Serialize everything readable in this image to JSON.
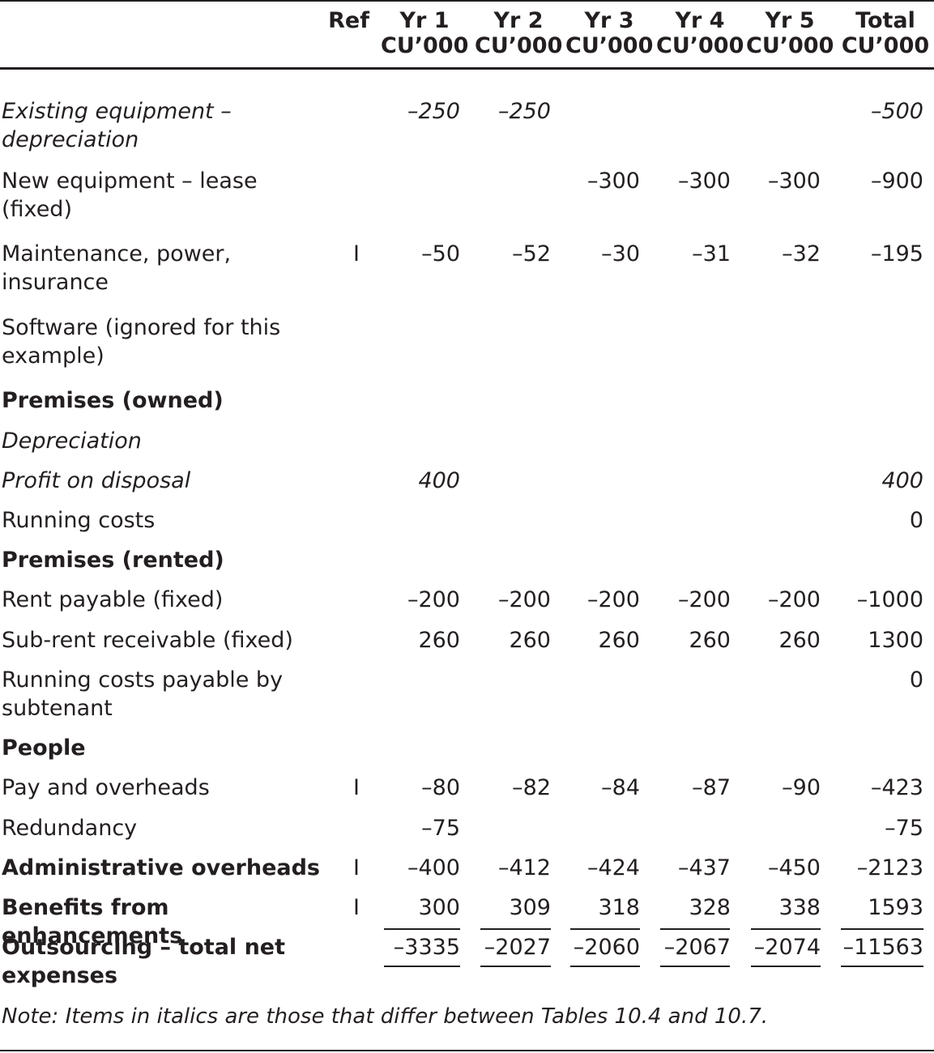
{
  "header": {
    "ref": "Ref",
    "cols": [
      {
        "title": "Yr 1",
        "unit": "CU’000"
      },
      {
        "title": "Yr 2",
        "unit": "CU’000"
      },
      {
        "title": "Yr 3",
        "unit": "CU’000"
      },
      {
        "title": "Yr 4",
        "unit": "CU’000"
      },
      {
        "title": "Yr 5",
        "unit": "CU’000"
      },
      {
        "title": "Total",
        "unit": "CU’000"
      }
    ]
  },
  "rows": [
    {
      "label": "Existing equipment – depreciation",
      "ref": "",
      "values": [
        "–250",
        "–250",
        "",
        "",
        "",
        "–500"
      ]
    },
    {
      "label": "New equipment – lease (fixed)",
      "ref": "",
      "values": [
        "",
        "",
        "–300",
        "–300",
        "–300",
        "–900"
      ]
    },
    {
      "label": "Maintenance, power, insurance",
      "ref": "I",
      "values": [
        "–50",
        "–52",
        "–30",
        "–31",
        "–32",
        "–195"
      ]
    },
    {
      "label": "Software (ignored for this example)",
      "ref": "",
      "values": [
        "",
        "",
        "",
        "",
        "",
        ""
      ]
    },
    {
      "label": "Premises (owned)",
      "ref": "",
      "values": [
        "",
        "",
        "",
        "",
        "",
        ""
      ]
    },
    {
      "label": "Depreciation",
      "ref": "",
      "values": [
        "",
        "",
        "",
        "",
        "",
        ""
      ]
    },
    {
      "label": "Profit on disposal",
      "ref": "",
      "values": [
        "400",
        "",
        "",
        "",
        "",
        "400"
      ]
    },
    {
      "label": "Running costs",
      "ref": "",
      "values": [
        "",
        "",
        "",
        "",
        "",
        "0"
      ]
    },
    {
      "label": "Premises (rented)",
      "ref": "",
      "values": [
        "",
        "",
        "",
        "",
        "",
        ""
      ]
    },
    {
      "label": "Rent payable (fixed)",
      "ref": "",
      "values": [
        "–200",
        "–200",
        "–200",
        "–200",
        "–200",
        "–1000"
      ]
    },
    {
      "label": "Sub-rent receivable (fixed)",
      "ref": "",
      "values": [
        "260",
        "260",
        "260",
        "260",
        "260",
        "1300"
      ]
    },
    {
      "label": "Running costs payable by subtenant",
      "ref": "",
      "values": [
        "",
        "",
        "",
        "",
        "",
        "0"
      ]
    },
    {
      "label": "People",
      "ref": "",
      "values": [
        "",
        "",
        "",
        "",
        "",
        ""
      ]
    },
    {
      "label": "Pay and overheads",
      "ref": "I",
      "values": [
        "–80",
        "–82",
        "–84",
        "–87",
        "–90",
        "–423"
      ]
    },
    {
      "label": "Redundancy",
      "ref": "",
      "values": [
        "–75",
        "",
        "",
        "",
        "",
        "–75"
      ]
    },
    {
      "label": "Administrative overheads",
      "ref": "I",
      "values": [
        "–400",
        "–412",
        "–424",
        "–437",
        "–450",
        "–2123"
      ]
    },
    {
      "label": "Benefits from enhancements",
      "ref": "I",
      "values": [
        "300",
        "309",
        "318",
        "328",
        "338",
        "1593"
      ]
    },
    {
      "label": "Outsourcing – total net expenses",
      "ref": "",
      "values": [
        "–3335",
        "–2027",
        "–2060",
        "–2067",
        "–2074",
        "–11563"
      ]
    }
  ],
  "note": "Note: Items in italics are those that differ between Tables 10.4 and 10.7."
}
